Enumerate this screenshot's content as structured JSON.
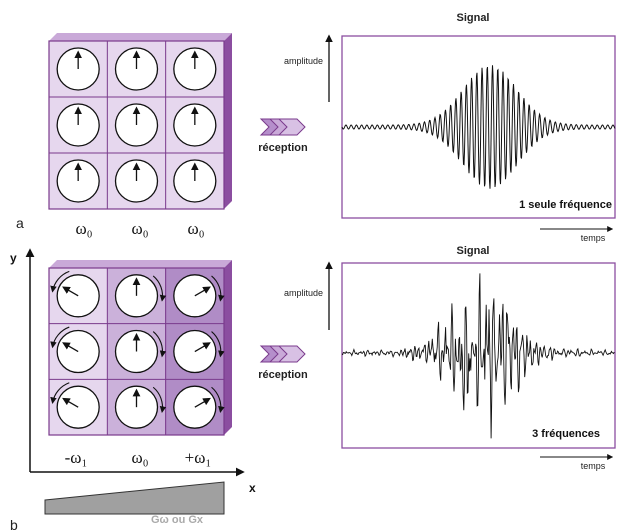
{
  "panel_a": {
    "letter": "a",
    "column_labels": [
      "ω₀",
      "ω₀",
      "ω₀"
    ],
    "reception_label": "réception",
    "signal": {
      "title": "Signal",
      "y_label": "amplitude",
      "x_label": "temps",
      "caption": "1 seule fréquence"
    }
  },
  "panel_b": {
    "letter": "b",
    "axis_y": "y",
    "axis_x": "x",
    "column_labels": [
      "-ω₁",
      "ω₀",
      "+ω₁"
    ],
    "reception_label": "réception",
    "gradient_label": "Gω ou Gx",
    "signal": {
      "title": "Signal",
      "y_label": "amplitude",
      "x_label": "temps",
      "caption": "3 fréquences"
    }
  },
  "colors": {
    "purple_dark": "#7a3a8c",
    "purple_light": "#e6d7ee",
    "purple_mid": "#cbb1da",
    "purple_deep": "#b08cc6",
    "gradient_gray": "#a0a0a0"
  }
}
